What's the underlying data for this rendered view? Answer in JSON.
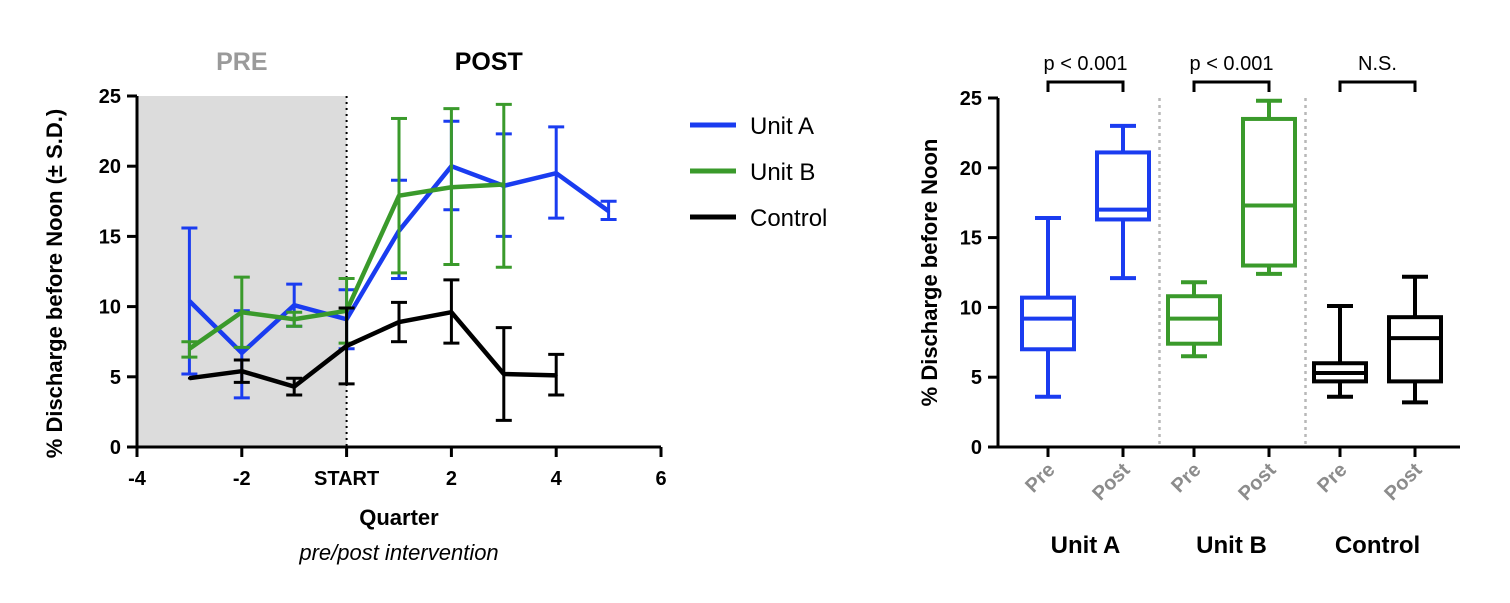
{
  "chart_data": [
    {
      "type": "line",
      "x_axis": {
        "title": "Quarter",
        "subtitle": "pre/post intervention",
        "range": [
          -4,
          6
        ],
        "ticks": [
          {
            "value": -4,
            "label": "-4"
          },
          {
            "value": -2,
            "label": "-2"
          },
          {
            "value": 0,
            "label": "START"
          },
          {
            "value": 2,
            "label": "2"
          },
          {
            "value": 4,
            "label": "4"
          },
          {
            "value": 6,
            "label": "6"
          }
        ]
      },
      "y_axis": {
        "title": "% Discharge before Noon (± S.D.)",
        "range": [
          0,
          25
        ],
        "ticks": [
          "0",
          "5",
          "10",
          "15",
          "20",
          "25"
        ]
      },
      "phases": {
        "pre_label": "PRE",
        "post_label": "POST",
        "pre_range": [
          -4,
          0
        ],
        "pre_color": "#dcdcdc",
        "pre_text_color": "#9a9a9a"
      },
      "series": [
        {
          "name": "Unit A",
          "color": "#1a3cf0",
          "points": [
            {
              "x": -3,
              "y": 10.4,
              "lo": 5.2,
              "hi": 15.6
            },
            {
              "x": -2,
              "y": 6.7,
              "lo": 3.5,
              "hi": 9.7
            },
            {
              "x": -1,
              "y": 10.1,
              "lo": 8.6,
              "hi": 11.6
            },
            {
              "x": 0,
              "y": 9.1,
              "lo": 7.0,
              "hi": 11.2
            },
            {
              "x": 1,
              "y": 15.4,
              "lo": 12.0,
              "hi": 19.0
            },
            {
              "x": 2,
              "y": 20.0,
              "lo": 16.9,
              "hi": 23.2
            },
            {
              "x": 3,
              "y": 18.6,
              "lo": 15.0,
              "hi": 22.3
            },
            {
              "x": 4,
              "y": 19.5,
              "lo": 16.3,
              "hi": 22.8
            },
            {
              "x": 5,
              "y": 16.8,
              "lo": 16.2,
              "hi": 17.5
            }
          ]
        },
        {
          "name": "Unit B",
          "color": "#3a9a2b",
          "points": [
            {
              "x": -3,
              "y": 7.0,
              "lo": 6.4,
              "hi": 7.5
            },
            {
              "x": -2,
              "y": 9.6,
              "lo": 7.1,
              "hi": 12.1
            },
            {
              "x": -1,
              "y": 9.1,
              "lo": 8.6,
              "hi": 9.6
            },
            {
              "x": 0,
              "y": 9.7,
              "lo": 7.4,
              "hi": 12.0
            },
            {
              "x": 1,
              "y": 17.9,
              "lo": 12.4,
              "hi": 23.4
            },
            {
              "x": 2,
              "y": 18.5,
              "lo": 13.0,
              "hi": 24.1
            },
            {
              "x": 3,
              "y": 18.7,
              "lo": 12.8,
              "hi": 24.4
            }
          ]
        },
        {
          "name": "Control",
          "color": "#000000",
          "points": [
            {
              "x": -3,
              "y": 4.9,
              "lo": 4.9,
              "hi": 4.9
            },
            {
              "x": -2,
              "y": 5.4,
              "lo": 4.6,
              "hi": 6.2
            },
            {
              "x": -1,
              "y": 4.3,
              "lo": 3.7,
              "hi": 4.9
            },
            {
              "x": 0,
              "y": 7.2,
              "lo": 4.5,
              "hi": 9.9
            },
            {
              "x": 1,
              "y": 8.9,
              "lo": 7.5,
              "hi": 10.3
            },
            {
              "x": 2,
              "y": 9.6,
              "lo": 7.4,
              "hi": 11.9
            },
            {
              "x": 3,
              "y": 5.2,
              "lo": 1.9,
              "hi": 8.5
            },
            {
              "x": 4,
              "y": 5.1,
              "lo": 3.7,
              "hi": 6.6
            }
          ]
        }
      ],
      "legend": {
        "placement": "right"
      }
    },
    {
      "type": "box",
      "y_axis": {
        "title": "% Discharge before Noon",
        "range": [
          0,
          25
        ],
        "ticks": [
          "0",
          "5",
          "10",
          "15",
          "20",
          "25"
        ]
      },
      "category_tick_color": "#8c8c8c",
      "groups": [
        {
          "name": "Unit A",
          "color": "#1a3cf0",
          "significance": "p < 0.001",
          "boxes": [
            {
              "label": "Pre",
              "min": 3.6,
              "q1": 7.0,
              "median": 9.2,
              "q3": 10.7,
              "max": 16.4
            },
            {
              "label": "Post",
              "min": 12.1,
              "q1": 16.3,
              "median": 17.0,
              "q3": 21.1,
              "max": 23.0
            }
          ]
        },
        {
          "name": "Unit B",
          "color": "#3a9a2b",
          "significance": "p < 0.001",
          "boxes": [
            {
              "label": "Pre",
              "min": 6.5,
              "q1": 7.4,
              "median": 9.2,
              "q3": 10.8,
              "max": 11.8
            },
            {
              "label": "Post",
              "min": 12.4,
              "q1": 13.0,
              "median": 17.3,
              "q3": 23.5,
              "max": 24.8
            }
          ]
        },
        {
          "name": "Control",
          "color": "#000000",
          "significance": "N.S.",
          "boxes": [
            {
              "label": "Pre",
              "min": 3.6,
              "q1": 4.7,
              "median": 5.3,
              "q3": 6.0,
              "max": 10.1
            },
            {
              "label": "Post",
              "min": 3.2,
              "q1": 4.7,
              "median": 7.8,
              "q3": 9.3,
              "max": 12.2
            }
          ]
        }
      ]
    }
  ]
}
